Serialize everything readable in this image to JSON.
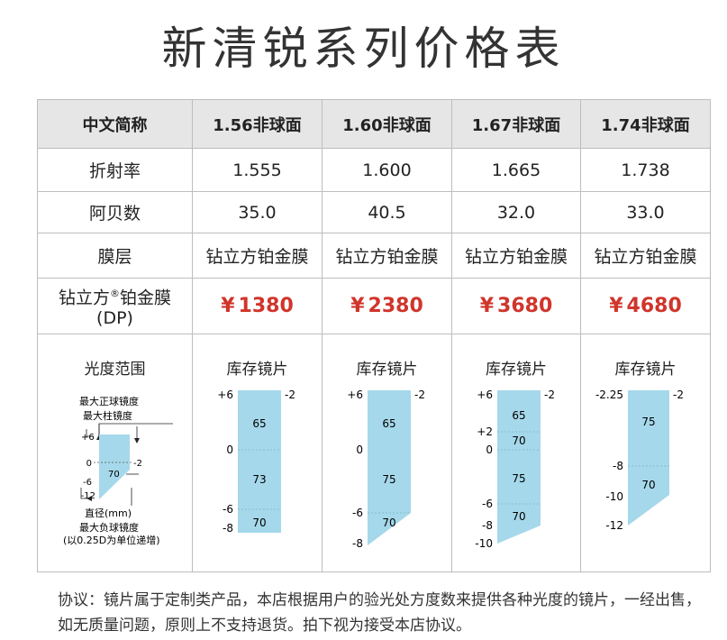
{
  "title": "新清锐系列价格表",
  "header": {
    "label": "中文简称",
    "columns": [
      "1.56非球面",
      "1.60非球面",
      "1.67非球面",
      "1.74非球面"
    ]
  },
  "rows": {
    "refractive": {
      "label": "折射率",
      "values": [
        "1.555",
        "1.600",
        "1.665",
        "1.738"
      ]
    },
    "abbe": {
      "label": "阿贝数",
      "values": [
        "35.0",
        "40.5",
        "32.0",
        "33.0"
      ]
    },
    "coating": {
      "label": "膜层",
      "values": [
        "钻立方铂金膜",
        "钻立方铂金膜",
        "钻立方铂金膜",
        "钻立方铂金膜"
      ]
    },
    "price": {
      "label_main": "钻立方",
      "label_reg": "®",
      "label_tail": "铂金膜",
      "label_sub": "(DP)",
      "currency": "¥",
      "values": [
        "1380",
        "2380",
        "3680",
        "4680"
      ],
      "color": "#d0352b"
    },
    "range": {
      "label": "光度范围",
      "stock_label": "库存镜片"
    }
  },
  "legend": {
    "max_sph": "最大正球镜度",
    "max_cyl": "最大柱镜度",
    "diameter": "直径(mm)",
    "max_neg": "最大负球镜度",
    "note": "(以0.25D为单位递增)",
    "plus": "+6",
    "zero": "0",
    "minus6": "-6",
    "minus12": "-12",
    "cyl": "-2",
    "dia": "70"
  },
  "ranges": [
    {
      "top": "+6",
      "mid": "0",
      "low": "-6",
      "bottom": "-8",
      "cyl": "-2",
      "diameters": [
        "65",
        "73",
        "70"
      ]
    },
    {
      "top": "+6",
      "mid": "0",
      "low": "-6",
      "bottom": "-8",
      "cyl": "-2",
      "diameters": [
        "65",
        "75",
        "70"
      ]
    },
    {
      "top": "+6",
      "plus2": "+2",
      "mid": "0",
      "low": "-6",
      "neg8": "-8",
      "bottom": "-10",
      "cyl": "-2",
      "diameters": [
        "65",
        "70",
        "75",
        "70"
      ]
    },
    {
      "top": "-2.25",
      "neg8": "-8",
      "neg10": "-10",
      "bottom": "-12",
      "cyl": "-2",
      "diameters": [
        "75",
        "70"
      ]
    }
  ],
  "colors": {
    "lens": "#a5d8ea",
    "header_bg": "#e6e6e6"
  },
  "footer": "协议：镜片属于定制类产品，本店根据用户的验光处方度数来提供各种光度的镜片，一经出售，如无质量问题，原则上不支持退货。拍下视为接受本店协议。"
}
